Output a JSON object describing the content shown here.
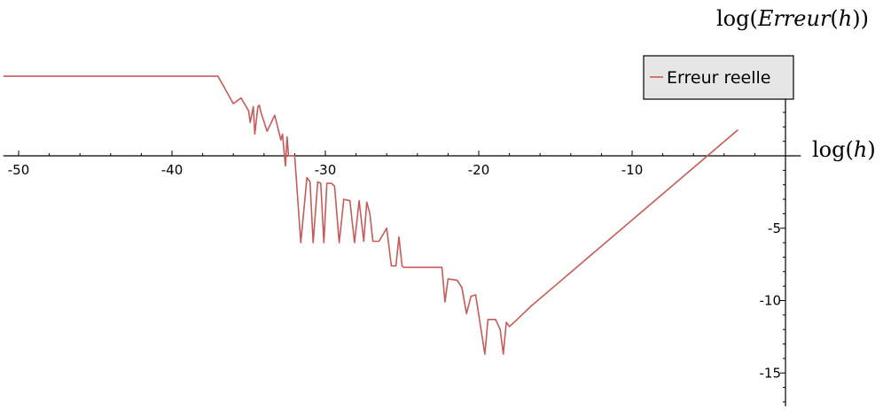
{
  "chart_data": {
    "type": "line",
    "xlabel": "log(h)",
    "ylabel": "log(Erreur(h))",
    "xlim": [
      -51,
      1
    ],
    "ylim": [
      -17.3,
      5.3
    ],
    "x_ticks": [
      -50,
      -40,
      -30,
      -20,
      -10
    ],
    "y_ticks": [
      -5,
      -10,
      -15
    ],
    "grid": false,
    "legend_position": "top-right",
    "series": [
      {
        "name": "Erreur reelle",
        "color": "#c85a5a",
        "x": [
          -51.0,
          -37.0,
          -36.0,
          -35.5,
          -35.0,
          -34.9,
          -34.7,
          -34.6,
          -34.4,
          -34.3,
          -34.2,
          -33.8,
          -33.3,
          -32.9,
          -32.8,
          -32.6,
          -32.5,
          -32.4,
          -32.3,
          -32.1,
          -32.0,
          -31.6,
          -31.2,
          -31.0,
          -30.8,
          -30.5,
          -30.3,
          -30.1,
          -29.9,
          -29.6,
          -29.4,
          -29.1,
          -28.8,
          -28.4,
          -28.1,
          -27.8,
          -27.5,
          -27.3,
          -27.1,
          -26.9,
          -26.5,
          -26.0,
          -25.7,
          -25.4,
          -25.2,
          -25.0,
          -24.9,
          -24.8,
          -24.5,
          -23.4,
          -22.4,
          -22.2,
          -22.0,
          -21.4,
          -21.1,
          -20.8,
          -20.5,
          -20.2,
          -19.6,
          -19.4,
          -18.9,
          -18.6,
          -18.4,
          -18.2,
          -18.0,
          -17.5,
          -16.6,
          -3.1
        ],
        "y": [
          5.5,
          5.5,
          3.6,
          4.0,
          3.1,
          2.3,
          3.4,
          1.5,
          3.4,
          3.5,
          3.0,
          1.7,
          2.8,
          1.1,
          1.5,
          -0.7,
          1.3,
          0.0,
          0.0,
          0.0,
          0.0,
          -6.0,
          -1.5,
          -1.8,
          -6.0,
          -1.8,
          -1.9,
          -6.0,
          -1.9,
          -1.9,
          -2.1,
          -6.0,
          -3.0,
          -3.1,
          -6.0,
          -3.1,
          -5.9,
          -3.2,
          -4.0,
          -5.9,
          -5.9,
          -5.0,
          -7.6,
          -7.6,
          -5.6,
          -7.6,
          -7.7,
          -7.7,
          -7.7,
          -7.7,
          -7.7,
          -10.1,
          -8.5,
          -8.6,
          -9.1,
          -10.9,
          -9.7,
          -9.6,
          -13.7,
          -11.3,
          -11.3,
          -12.0,
          -13.7,
          -11.5,
          -11.8,
          -11.3,
          -10.4,
          1.8
        ]
      }
    ]
  }
}
